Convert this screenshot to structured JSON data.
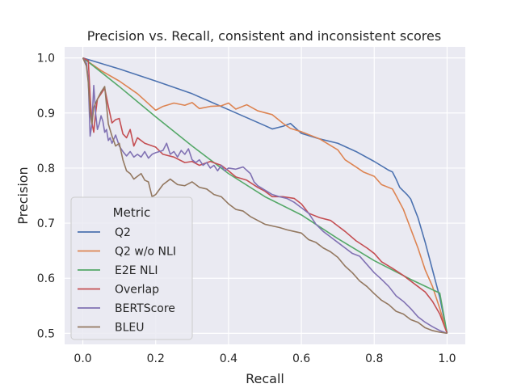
{
  "chart_data": {
    "type": "line",
    "title": "Precision vs. Recall, consistent and inconsistent scores",
    "xlabel": "Recall",
    "ylabel": "Precision",
    "xlim": [
      -0.05,
      1.05
    ],
    "ylim": [
      0.48,
      1.02
    ],
    "xticks": [
      0.0,
      0.2,
      0.4,
      0.6,
      0.8,
      1.0
    ],
    "xtick_labels": [
      "0.0",
      "0.2",
      "0.4",
      "0.6",
      "0.8",
      "1.0"
    ],
    "yticks": [
      0.5,
      0.6,
      0.7,
      0.8,
      0.9,
      1.0
    ],
    "ytick_labels": [
      "0.5",
      "0.6",
      "0.7",
      "0.8",
      "0.9",
      "1.0"
    ],
    "grid": true,
    "background": "#eaeaf2",
    "legend": {
      "title": "Metric",
      "position": "lower-left"
    },
    "series": [
      {
        "name": "Q2",
        "color": "#4c72b0",
        "points": [
          [
            0.0,
            1.0
          ],
          [
            0.02,
            0.996
          ],
          [
            0.1,
            0.98
          ],
          [
            0.2,
            0.958
          ],
          [
            0.3,
            0.935
          ],
          [
            0.4,
            0.906
          ],
          [
            0.5,
            0.877
          ],
          [
            0.52,
            0.871
          ],
          [
            0.55,
            0.876
          ],
          [
            0.57,
            0.881
          ],
          [
            0.6,
            0.863
          ],
          [
            0.65,
            0.853
          ],
          [
            0.7,
            0.845
          ],
          [
            0.75,
            0.83
          ],
          [
            0.8,
            0.812
          ],
          [
            0.84,
            0.796
          ],
          [
            0.85,
            0.793
          ],
          [
            0.86,
            0.78
          ],
          [
            0.87,
            0.765
          ],
          [
            0.89,
            0.752
          ],
          [
            0.9,
            0.744
          ],
          [
            0.92,
            0.71
          ],
          [
            0.94,
            0.665
          ],
          [
            0.96,
            0.615
          ],
          [
            0.98,
            0.565
          ],
          [
            1.0,
            0.5
          ]
        ]
      },
      {
        "name": "Q2 w/o NLI",
        "color": "#dd8452",
        "points": [
          [
            0.0,
            1.0
          ],
          [
            0.05,
            0.977
          ],
          [
            0.1,
            0.958
          ],
          [
            0.15,
            0.935
          ],
          [
            0.2,
            0.905
          ],
          [
            0.22,
            0.912
          ],
          [
            0.25,
            0.918
          ],
          [
            0.28,
            0.914
          ],
          [
            0.3,
            0.919
          ],
          [
            0.32,
            0.908
          ],
          [
            0.35,
            0.912
          ],
          [
            0.38,
            0.913
          ],
          [
            0.4,
            0.918
          ],
          [
            0.42,
            0.907
          ],
          [
            0.45,
            0.915
          ],
          [
            0.48,
            0.904
          ],
          [
            0.52,
            0.897
          ],
          [
            0.55,
            0.881
          ],
          [
            0.57,
            0.872
          ],
          [
            0.6,
            0.866
          ],
          [
            0.65,
            0.853
          ],
          [
            0.7,
            0.833
          ],
          [
            0.72,
            0.815
          ],
          [
            0.75,
            0.802
          ],
          [
            0.77,
            0.793
          ],
          [
            0.8,
            0.785
          ],
          [
            0.82,
            0.77
          ],
          [
            0.85,
            0.762
          ],
          [
            0.86,
            0.75
          ],
          [
            0.88,
            0.725
          ],
          [
            0.9,
            0.69
          ],
          [
            0.92,
            0.655
          ],
          [
            0.94,
            0.615
          ],
          [
            0.96,
            0.585
          ],
          [
            0.98,
            0.545
          ],
          [
            1.0,
            0.5
          ]
        ]
      },
      {
        "name": "E2E NLI",
        "color": "#55a868",
        "points": [
          [
            0.0,
            1.0
          ],
          [
            0.02,
            0.99
          ],
          [
            0.1,
            0.948
          ],
          [
            0.2,
            0.893
          ],
          [
            0.3,
            0.84
          ],
          [
            0.4,
            0.79
          ],
          [
            0.5,
            0.748
          ],
          [
            0.6,
            0.715
          ],
          [
            0.7,
            0.672
          ],
          [
            0.8,
            0.632
          ],
          [
            0.9,
            0.598
          ],
          [
            0.98,
            0.573
          ],
          [
            1.0,
            0.5
          ]
        ]
      },
      {
        "name": "Overlap",
        "color": "#c44e52",
        "points": [
          [
            0.0,
            1.0
          ],
          [
            0.015,
            0.995
          ],
          [
            0.02,
            0.93
          ],
          [
            0.025,
            0.882
          ],
          [
            0.03,
            0.865
          ],
          [
            0.035,
            0.9
          ],
          [
            0.04,
            0.925
          ],
          [
            0.05,
            0.935
          ],
          [
            0.06,
            0.945
          ],
          [
            0.07,
            0.912
          ],
          [
            0.08,
            0.882
          ],
          [
            0.09,
            0.888
          ],
          [
            0.1,
            0.89
          ],
          [
            0.11,
            0.862
          ],
          [
            0.12,
            0.855
          ],
          [
            0.13,
            0.87
          ],
          [
            0.14,
            0.84
          ],
          [
            0.15,
            0.855
          ],
          [
            0.17,
            0.845
          ],
          [
            0.2,
            0.838
          ],
          [
            0.22,
            0.825
          ],
          [
            0.25,
            0.82
          ],
          [
            0.28,
            0.81
          ],
          [
            0.3,
            0.812
          ],
          [
            0.32,
            0.805
          ],
          [
            0.35,
            0.812
          ],
          [
            0.38,
            0.805
          ],
          [
            0.4,
            0.795
          ],
          [
            0.42,
            0.784
          ],
          [
            0.45,
            0.778
          ],
          [
            0.48,
            0.765
          ],
          [
            0.5,
            0.758
          ],
          [
            0.52,
            0.748
          ],
          [
            0.55,
            0.748
          ],
          [
            0.58,
            0.745
          ],
          [
            0.6,
            0.735
          ],
          [
            0.62,
            0.718
          ],
          [
            0.65,
            0.71
          ],
          [
            0.68,
            0.705
          ],
          [
            0.7,
            0.695
          ],
          [
            0.72,
            0.685
          ],
          [
            0.75,
            0.668
          ],
          [
            0.78,
            0.655
          ],
          [
            0.8,
            0.645
          ],
          [
            0.82,
            0.63
          ],
          [
            0.85,
            0.618
          ],
          [
            0.88,
            0.605
          ],
          [
            0.9,
            0.595
          ],
          [
            0.92,
            0.585
          ],
          [
            0.94,
            0.575
          ],
          [
            0.96,
            0.558
          ],
          [
            0.98,
            0.535
          ],
          [
            1.0,
            0.5
          ]
        ]
      },
      {
        "name": "BERTScore",
        "color": "#8172b3",
        "points": [
          [
            0.0,
            1.0
          ],
          [
            0.01,
            0.99
          ],
          [
            0.015,
            0.96
          ],
          [
            0.02,
            0.858
          ],
          [
            0.025,
            0.88
          ],
          [
            0.03,
            0.95
          ],
          [
            0.035,
            0.9
          ],
          [
            0.04,
            0.87
          ],
          [
            0.045,
            0.88
          ],
          [
            0.05,
            0.895
          ],
          [
            0.055,
            0.885
          ],
          [
            0.06,
            0.865
          ],
          [
            0.065,
            0.87
          ],
          [
            0.07,
            0.85
          ],
          [
            0.075,
            0.855
          ],
          [
            0.08,
            0.845
          ],
          [
            0.09,
            0.86
          ],
          [
            0.1,
            0.84
          ],
          [
            0.11,
            0.83
          ],
          [
            0.12,
            0.822
          ],
          [
            0.13,
            0.83
          ],
          [
            0.14,
            0.82
          ],
          [
            0.15,
            0.825
          ],
          [
            0.16,
            0.82
          ],
          [
            0.17,
            0.83
          ],
          [
            0.18,
            0.818
          ],
          [
            0.19,
            0.825
          ],
          [
            0.2,
            0.828
          ],
          [
            0.22,
            0.832
          ],
          [
            0.23,
            0.845
          ],
          [
            0.24,
            0.825
          ],
          [
            0.25,
            0.83
          ],
          [
            0.26,
            0.82
          ],
          [
            0.27,
            0.832
          ],
          [
            0.28,
            0.825
          ],
          [
            0.29,
            0.835
          ],
          [
            0.3,
            0.815
          ],
          [
            0.31,
            0.81
          ],
          [
            0.32,
            0.815
          ],
          [
            0.33,
            0.805
          ],
          [
            0.34,
            0.81
          ],
          [
            0.35,
            0.8
          ],
          [
            0.36,
            0.805
          ],
          [
            0.37,
            0.795
          ],
          [
            0.38,
            0.805
          ],
          [
            0.39,
            0.795
          ],
          [
            0.4,
            0.8
          ],
          [
            0.42,
            0.798
          ],
          [
            0.44,
            0.802
          ],
          [
            0.46,
            0.79
          ],
          [
            0.47,
            0.775
          ],
          [
            0.48,
            0.768
          ],
          [
            0.5,
            0.76
          ],
          [
            0.52,
            0.752
          ],
          [
            0.54,
            0.748
          ],
          [
            0.56,
            0.745
          ],
          [
            0.58,
            0.738
          ],
          [
            0.6,
            0.728
          ],
          [
            0.62,
            0.718
          ],
          [
            0.64,
            0.698
          ],
          [
            0.66,
            0.685
          ],
          [
            0.68,
            0.675
          ],
          [
            0.7,
            0.665
          ],
          [
            0.72,
            0.655
          ],
          [
            0.74,
            0.645
          ],
          [
            0.76,
            0.64
          ],
          [
            0.78,
            0.625
          ],
          [
            0.8,
            0.61
          ],
          [
            0.82,
            0.598
          ],
          [
            0.84,
            0.585
          ],
          [
            0.86,
            0.568
          ],
          [
            0.88,
            0.558
          ],
          [
            0.9,
            0.545
          ],
          [
            0.92,
            0.53
          ],
          [
            0.94,
            0.52
          ],
          [
            0.96,
            0.512
          ],
          [
            0.98,
            0.505
          ],
          [
            1.0,
            0.5
          ]
        ]
      },
      {
        "name": "BLEU",
        "color": "#937860",
        "points": [
          [
            0.0,
            1.0
          ],
          [
            0.01,
            0.985
          ],
          [
            0.015,
            0.955
          ],
          [
            0.02,
            0.9
          ],
          [
            0.025,
            0.88
          ],
          [
            0.03,
            0.91
          ],
          [
            0.04,
            0.925
          ],
          [
            0.05,
            0.938
          ],
          [
            0.06,
            0.948
          ],
          [
            0.07,
            0.88
          ],
          [
            0.08,
            0.858
          ],
          [
            0.09,
            0.84
          ],
          [
            0.1,
            0.845
          ],
          [
            0.11,
            0.815
          ],
          [
            0.12,
            0.795
          ],
          [
            0.13,
            0.79
          ],
          [
            0.14,
            0.78
          ],
          [
            0.15,
            0.785
          ],
          [
            0.16,
            0.79
          ],
          [
            0.17,
            0.778
          ],
          [
            0.18,
            0.775
          ],
          [
            0.19,
            0.748
          ],
          [
            0.2,
            0.752
          ],
          [
            0.22,
            0.77
          ],
          [
            0.24,
            0.78
          ],
          [
            0.26,
            0.77
          ],
          [
            0.28,
            0.768
          ],
          [
            0.3,
            0.775
          ],
          [
            0.32,
            0.765
          ],
          [
            0.34,
            0.762
          ],
          [
            0.36,
            0.752
          ],
          [
            0.38,
            0.748
          ],
          [
            0.4,
            0.735
          ],
          [
            0.42,
            0.725
          ],
          [
            0.44,
            0.722
          ],
          [
            0.46,
            0.712
          ],
          [
            0.48,
            0.705
          ],
          [
            0.5,
            0.698
          ],
          [
            0.52,
            0.695
          ],
          [
            0.54,
            0.692
          ],
          [
            0.56,
            0.688
          ],
          [
            0.58,
            0.685
          ],
          [
            0.6,
            0.682
          ],
          [
            0.62,
            0.67
          ],
          [
            0.64,
            0.665
          ],
          [
            0.66,
            0.655
          ],
          [
            0.68,
            0.648
          ],
          [
            0.7,
            0.638
          ],
          [
            0.72,
            0.622
          ],
          [
            0.74,
            0.61
          ],
          [
            0.76,
            0.595
          ],
          [
            0.78,
            0.585
          ],
          [
            0.8,
            0.572
          ],
          [
            0.82,
            0.56
          ],
          [
            0.84,
            0.552
          ],
          [
            0.86,
            0.54
          ],
          [
            0.88,
            0.535
          ],
          [
            0.9,
            0.525
          ],
          [
            0.92,
            0.52
          ],
          [
            0.94,
            0.51
          ],
          [
            0.96,
            0.505
          ],
          [
            0.98,
            0.502
          ],
          [
            1.0,
            0.5
          ]
        ]
      }
    ]
  }
}
